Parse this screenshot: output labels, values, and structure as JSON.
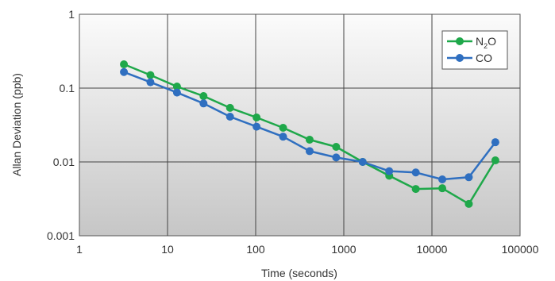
{
  "chart_data": {
    "type": "line",
    "title": "",
    "xlabel": "Time (seconds)",
    "ylabel": "Allan Deviation (ppb)",
    "x_scale": "log",
    "y_scale": "log",
    "xlim": [
      1,
      100000
    ],
    "ylim": [
      0.001,
      1
    ],
    "x_ticks": [
      "1",
      "10",
      "100",
      "1000",
      "10000",
      "100000"
    ],
    "y_ticks": [
      "0.001",
      "0.01",
      "0.1",
      "1"
    ],
    "grid": true,
    "legend_position": "top-right",
    "series": [
      {
        "name": "N2O",
        "legend_label": {
          "main": "N",
          "sub": "2",
          "tail": "O"
        },
        "color": "#1fa84a",
        "x": [
          3.2,
          6.4,
          12.8,
          25.6,
          51.2,
          102.4,
          204.8,
          409.6,
          819.2,
          1638.4,
          3276.8,
          6553.6,
          13107.2,
          26214.4,
          52428.8
        ],
        "y": [
          0.21,
          0.15,
          0.105,
          0.078,
          0.054,
          0.04,
          0.029,
          0.02,
          0.016,
          0.01,
          0.0065,
          0.0043,
          0.0044,
          0.0027,
          0.0105
        ]
      },
      {
        "name": "CO",
        "legend_label": {
          "main": "CO",
          "sub": "",
          "tail": ""
        },
        "color": "#2f6fc0",
        "x": [
          3.2,
          6.4,
          12.8,
          25.6,
          51.2,
          102.4,
          204.8,
          409.6,
          819.2,
          1638.4,
          3276.8,
          6553.6,
          13107.2,
          26214.4,
          52428.8
        ],
        "y": [
          0.165,
          0.12,
          0.087,
          0.062,
          0.041,
          0.03,
          0.022,
          0.014,
          0.0115,
          0.01,
          0.0075,
          0.0072,
          0.0058,
          0.0062,
          0.0185
        ]
      }
    ]
  }
}
